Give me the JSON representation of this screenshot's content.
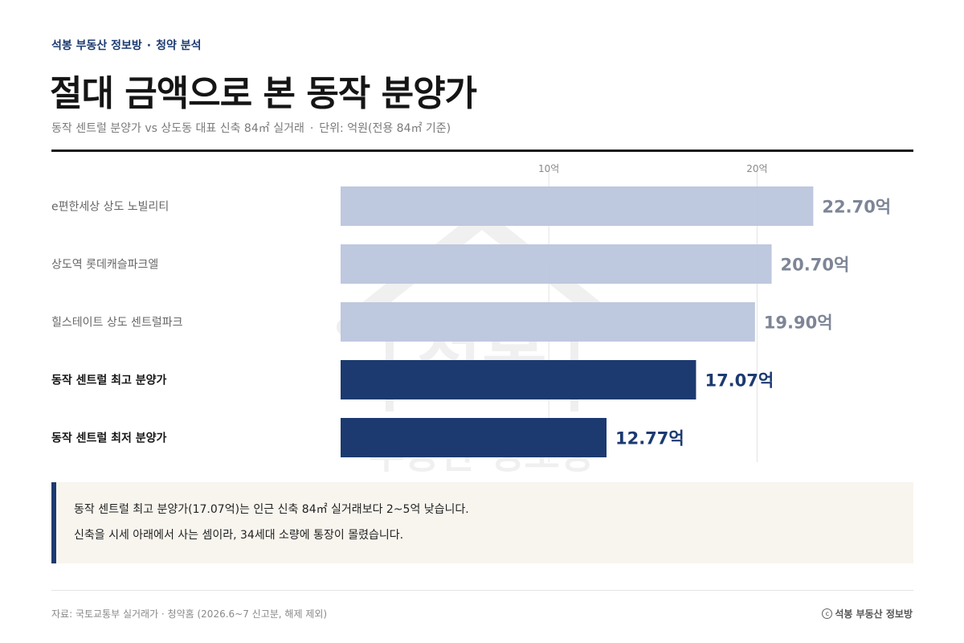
{
  "header": {
    "kicker_brand": "석봉 부동산 정보방",
    "kicker_separator": "·",
    "kicker_section": "청약 분석",
    "title": "절대 금액으로 본 동작 분양가",
    "subtitle_main": "동작 센트럴 분양가 vs 상도동 대표 신축 84㎡ 실거래",
    "subtitle_separator": "·",
    "subtitle_unit": "단위: 억원(전용 84㎡ 기준)"
  },
  "colors": {
    "accent": "#1c3a70",
    "compare_bar": "#bbc5dc",
    "compare_label": "#7d8596",
    "callout_bg": "#f8f5ee"
  },
  "chart_data": {
    "type": "bar",
    "orientation": "horizontal",
    "categories": [
      "e편한세상 상도 노빌리티",
      "상도역 롯데캐슬파크엘",
      "힐스테이트 상도 센트럴파크",
      "동작 센트럴 최고 분양가",
      "동작 센트럴 최저 분양가"
    ],
    "values": [
      22.7,
      20.7,
      19.9,
      17.07,
      12.77
    ],
    "value_labels": [
      "22.70억",
      "20.70억",
      "19.90억",
      "17.07억",
      "12.77억"
    ],
    "highlight": [
      false,
      false,
      false,
      true,
      true
    ],
    "xlim": [
      0,
      25
    ],
    "xticks": [
      10,
      20
    ],
    "xtick_labels": [
      "10억",
      "20억"
    ],
    "grid": true,
    "title": "",
    "xlabel": "",
    "ylabel": ""
  },
  "callout": {
    "line1": "동작 센트럴 최고 분양가(17.07억)는 인근 신축 84㎡ 실거래보다 2~5억 낮습니다.",
    "line2": "신축을 시세 아래에서 사는 셈이라, 34세대 소량에 통장이 몰렸습니다."
  },
  "footer": {
    "source": "자료: 국토교통부 실거래가 · 청약홈 (2026.6~7 신고분, 해제 제외)",
    "copyright_symbol": "c",
    "brand": "석봉 부동산 정보방"
  },
  "watermark": {
    "line1": "석봉",
    "line2": "부동산 정보방"
  }
}
